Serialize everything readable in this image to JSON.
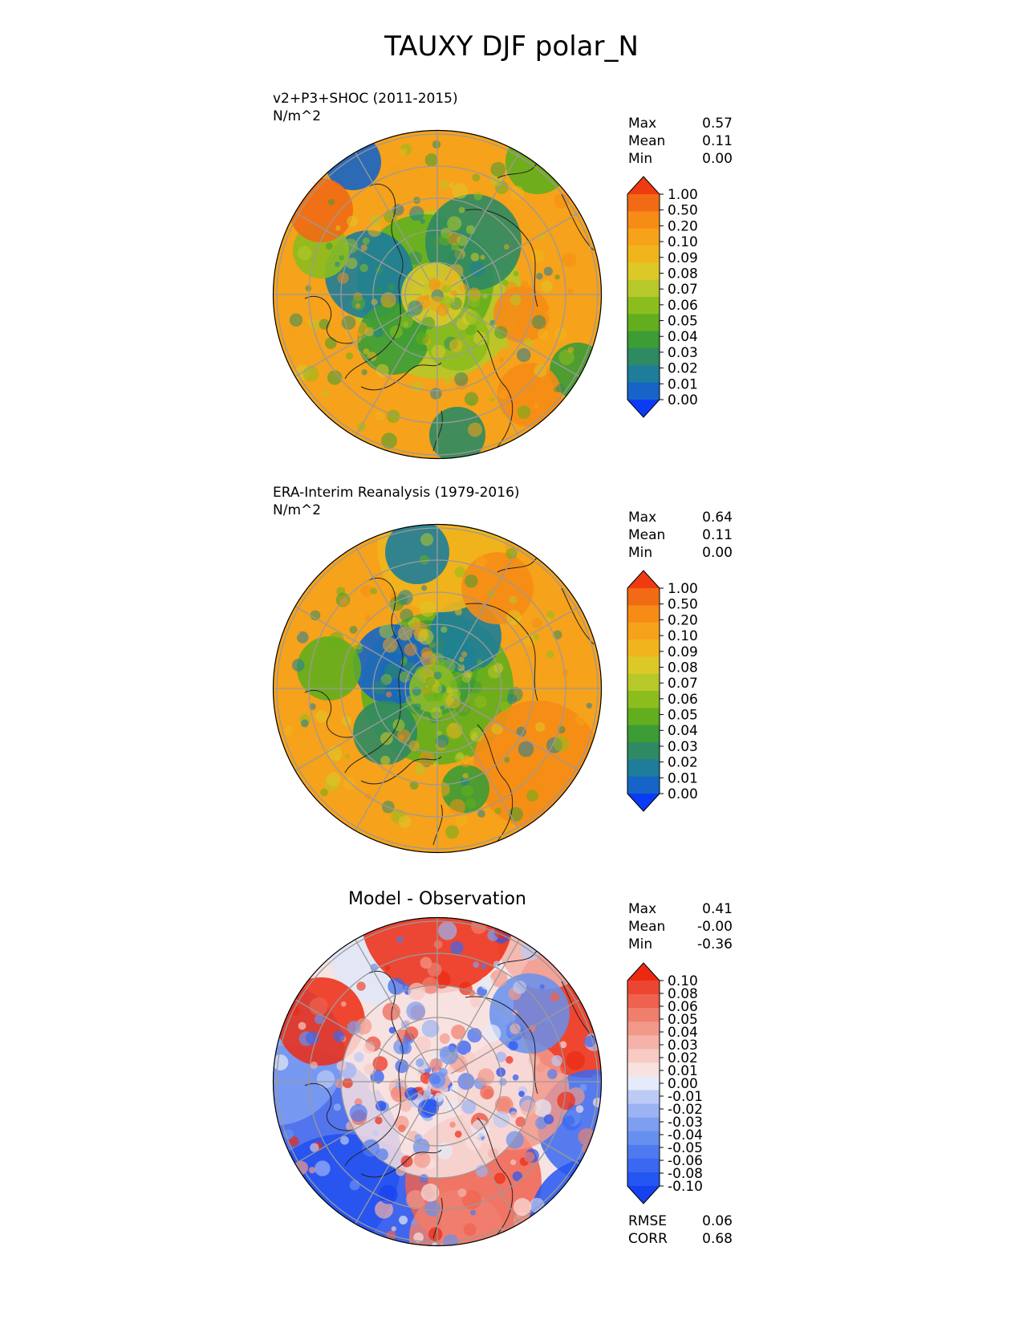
{
  "figure": {
    "title": "TAUXY DJF polar_N"
  },
  "panels": [
    {
      "id": "test",
      "title": "v2+P3+SHOC (2011-2015)",
      "units": "N/m^2",
      "stats": [
        {
          "label": "Max",
          "value": "0.57"
        },
        {
          "label": "Mean",
          "value": "0.11"
        },
        {
          "label": "Min",
          "value": "0.00"
        }
      ],
      "colorbar_labels": [
        "1.00",
        "0.50",
        "0.20",
        "0.10",
        "0.09",
        "0.08",
        "0.07",
        "0.06",
        "0.05",
        "0.04",
        "0.03",
        "0.02",
        "0.01",
        "0.00"
      ]
    },
    {
      "id": "reference",
      "title": "ERA-Interim Reanalysis (1979-2016)",
      "units": "N/m^2",
      "stats": [
        {
          "label": "Max",
          "value": "0.64"
        },
        {
          "label": "Mean",
          "value": "0.11"
        },
        {
          "label": "Min",
          "value": "0.00"
        }
      ],
      "colorbar_labels": [
        "1.00",
        "0.50",
        "0.20",
        "0.10",
        "0.09",
        "0.08",
        "0.07",
        "0.06",
        "0.05",
        "0.04",
        "0.03",
        "0.02",
        "0.01",
        "0.00"
      ]
    },
    {
      "id": "diff",
      "title": "Model - Observation",
      "stats": [
        {
          "label": "Max",
          "value": "0.41"
        },
        {
          "label": "Mean",
          "value": "-0.00"
        },
        {
          "label": "Min",
          "value": "-0.36"
        }
      ],
      "extra_stats": [
        {
          "label": "RMSE",
          "value": "0.06"
        },
        {
          "label": "CORR",
          "value": "0.68"
        }
      ],
      "colorbar_labels": [
        "0.10",
        "0.08",
        "0.06",
        "0.05",
        "0.04",
        "0.03",
        "0.02",
        "0.01",
        "0.00",
        "-0.01",
        "-0.02",
        "-0.03",
        "-0.04",
        "-0.05",
        "-0.06",
        "-0.08",
        "-0.10"
      ]
    }
  ],
  "chart_data": [
    {
      "type": "heatmap",
      "projection": "north-polar-stereographic",
      "title": "v2+P3+SHOC (2011-2015)",
      "units": "N/m^2",
      "levels": [
        0.0,
        0.01,
        0.02,
        0.03,
        0.04,
        0.05,
        0.06,
        0.07,
        0.08,
        0.09,
        0.1,
        0.2,
        0.5,
        1.0
      ],
      "colormap": [
        "#0b3bf5",
        "#1764c8",
        "#1d7d9a",
        "#2e8a63",
        "#3c9c35",
        "#62ae1e",
        "#8cbd1e",
        "#b6c82a",
        "#dcc928",
        "#f0b51c",
        "#f6a21a",
        "#f68c16",
        "#f26a15",
        "#ef3b12"
      ],
      "stats": {
        "max": 0.57,
        "mean": 0.11,
        "min": 0.0
      }
    },
    {
      "type": "heatmap",
      "projection": "north-polar-stereographic",
      "title": "ERA-Interim Reanalysis (1979-2016)",
      "units": "N/m^2",
      "levels": [
        0.0,
        0.01,
        0.02,
        0.03,
        0.04,
        0.05,
        0.06,
        0.07,
        0.08,
        0.09,
        0.1,
        0.2,
        0.5,
        1.0
      ],
      "colormap": [
        "#0b3bf5",
        "#1764c8",
        "#1d7d9a",
        "#2e8a63",
        "#3c9c35",
        "#62ae1e",
        "#8cbd1e",
        "#b6c82a",
        "#dcc928",
        "#f0b51c",
        "#f6a21a",
        "#f68c16",
        "#f26a15",
        "#ef3b12"
      ],
      "stats": {
        "max": 0.64,
        "mean": 0.11,
        "min": 0.0
      }
    },
    {
      "type": "heatmap",
      "projection": "north-polar-stereographic",
      "title": "Model - Observation",
      "levels": [
        -0.1,
        -0.08,
        -0.06,
        -0.05,
        -0.04,
        -0.03,
        -0.02,
        -0.01,
        0.0,
        0.01,
        0.02,
        0.03,
        0.04,
        0.05,
        0.06,
        0.08,
        0.1
      ],
      "colormap": [
        "#1741f0",
        "#2456f2",
        "#3a68f0",
        "#4f79ee",
        "#6690ef",
        "#7e9ff1",
        "#9bb3f3",
        "#bccbf6",
        "#e5ebf8",
        "#f8e2e0",
        "#f7cbc4",
        "#f4b2a8",
        "#f29889",
        "#f07f6e",
        "#ee624f",
        "#ec4632",
        "#ec2a12"
      ],
      "stats": {
        "max": 0.41,
        "mean": -0.0,
        "min": -0.36,
        "rmse": 0.06,
        "corr": 0.68
      }
    }
  ]
}
